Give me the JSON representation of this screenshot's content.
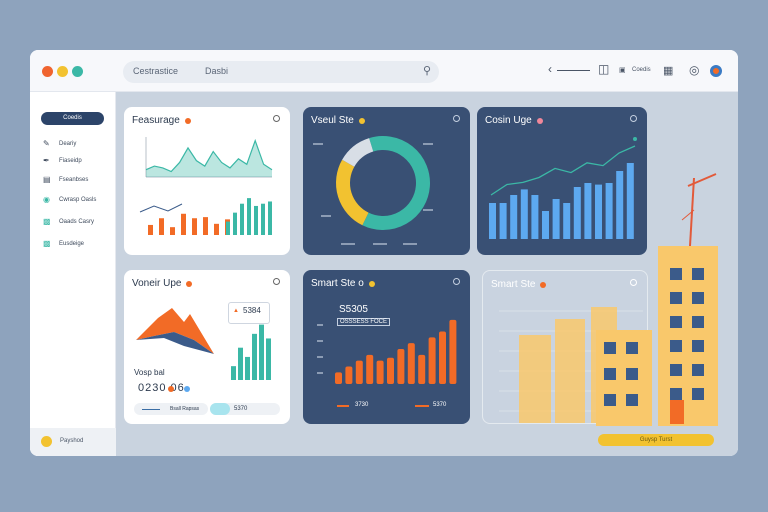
{
  "titlebar": {
    "search_text": "Cestrastice",
    "search_text2": "Dasbi",
    "right_label": "Coedis",
    "colors": {
      "close": "#f0642f",
      "min": "#f2c230",
      "max": "#3bb8a6"
    }
  },
  "sidebar": {
    "button_label": "Coedis",
    "items": [
      {
        "label": "Deariy",
        "icon": "pen-icon"
      },
      {
        "label": "Fiaseidp",
        "icon": "edit-icon"
      },
      {
        "label": "Fseanbses",
        "icon": "folder-icon"
      },
      {
        "label": "Cwrasp Oasls",
        "icon": "globe-icon"
      },
      {
        "label": "Oaads Casry",
        "icon": "table-icon"
      },
      {
        "label": "Eusdeige",
        "icon": "chart-icon"
      }
    ],
    "footer_label": "Payshod"
  },
  "cards": {
    "c1": {
      "title": "Feasurage"
    },
    "c2": {
      "title": "Vseul Ste"
    },
    "c3": {
      "title": "Cosin Uge"
    },
    "c4": {
      "title": "Voneir Upe",
      "stat_box": "5384",
      "label": "Vosp bal",
      "nums": "0230 06",
      "pill1": "Bsall Rapsas",
      "pill2": "5370"
    },
    "c5": {
      "title": "Smart Ste o",
      "head_num": "S5305",
      "head_sub": "OSSSESS FOCE",
      "foot1": "3730",
      "foot2": "5370"
    },
    "c6": {
      "title": "Smart Ste"
    }
  },
  "bottom_bar": {
    "label": "Guysp Turst"
  },
  "chart_data": [
    {
      "type": "area",
      "title": "Feasurage",
      "series": [
        {
          "values": [
            4,
            6,
            5,
            3,
            8,
            16,
            9,
            6,
            14,
            8,
            5,
            10,
            7,
            20,
            7,
            4
          ]
        }
      ]
    },
    {
      "type": "bar",
      "series": [
        {
          "values": [
            9,
            15,
            7,
            19,
            15,
            16,
            10,
            14
          ]
        },
        {
          "values": [
            12,
            20,
            28,
            33,
            26,
            28,
            30
          ]
        }
      ],
      "colors": [
        "#f26b26",
        "#3bb8a6"
      ]
    },
    {
      "type": "pie",
      "title": "Vseul Ste",
      "slices": [
        62,
        26,
        12
      ],
      "colors": [
        "#3bb8a6",
        "#f2c230",
        "#d8dee6"
      ]
    },
    {
      "type": "bar",
      "title": "Cosin Uge",
      "values": [
        45,
        45,
        55,
        62,
        55,
        35,
        50,
        45,
        65,
        70,
        68,
        70,
        85,
        95
      ],
      "line": [
        20,
        35,
        38,
        45,
        58,
        52,
        66,
        62,
        80,
        90
      ],
      "colors": [
        "#5da9f0",
        "#3bb8a6"
      ]
    },
    {
      "type": "bar",
      "title": "Voneir Upe",
      "values": [
        6,
        14,
        10,
        20,
        24,
        18
      ],
      "colors": [
        "#3bb8a6"
      ]
    },
    {
      "type": "bar",
      "title": "Smart Ste o",
      "values": [
        4,
        6,
        8,
        10,
        8,
        9,
        12,
        14,
        10,
        16,
        18,
        22
      ],
      "colors": [
        "#f26b26"
      ]
    }
  ]
}
